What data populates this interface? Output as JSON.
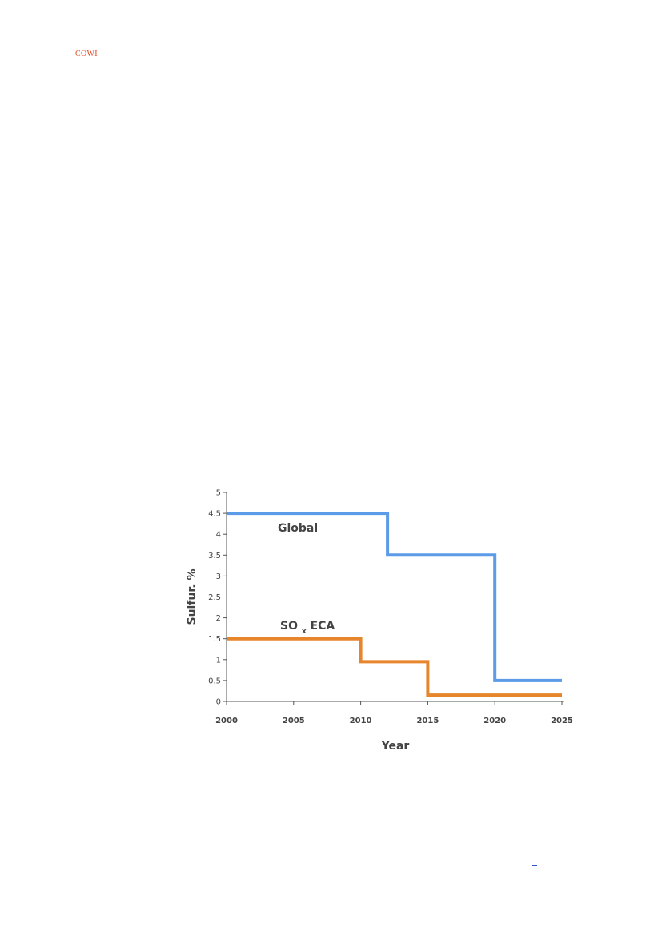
{
  "header": {
    "logo_text": "COWI",
    "logo_color": "#e8431c"
  },
  "chart_data": {
    "type": "line",
    "step": true,
    "xlabel": "Year",
    "ylabel": "Sulfur. %",
    "xlim": [
      2000,
      2025
    ],
    "ylim": [
      0,
      5
    ],
    "x_ticks": [
      "2000",
      "2005",
      "2010",
      "2015",
      "2020",
      "2025"
    ],
    "y_ticks": [
      "0",
      "0.5",
      "1",
      "1.5",
      "2",
      "2.5",
      "3",
      "3.5",
      "4",
      "4.5",
      "5"
    ],
    "grid": false,
    "series": [
      {
        "name": "Global",
        "color": "#5b9be8",
        "points": [
          [
            2000,
            4.5
          ],
          [
            2012,
            4.5
          ],
          [
            2012,
            3.5
          ],
          [
            2020,
            3.5
          ],
          [
            2020,
            0.5
          ],
          [
            2025,
            0.5
          ]
        ]
      },
      {
        "name": "SOx ECA",
        "label_main": "SO",
        "label_sub": "x",
        "label_rest": " ECA",
        "color": "#e6852b",
        "points": [
          [
            2000,
            1.5
          ],
          [
            2010,
            1.5
          ],
          [
            2010,
            0.95
          ],
          [
            2015,
            0.95
          ],
          [
            2015,
            0.15
          ],
          [
            2025,
            0.15
          ]
        ]
      }
    ]
  },
  "footer": {
    "mark_color": "#3355cc"
  }
}
